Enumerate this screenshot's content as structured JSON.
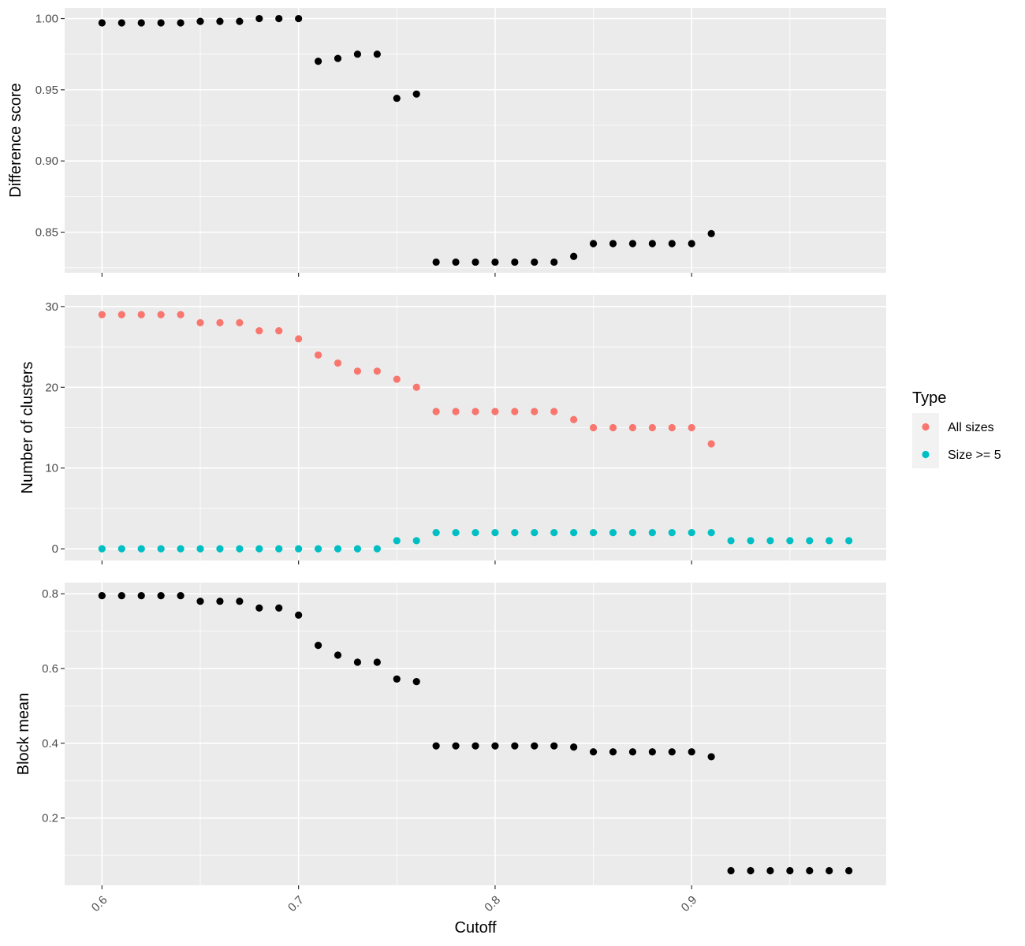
{
  "chart_data": {
    "type": "scatter",
    "xlabel": "Cutoff",
    "x_ticks": [
      "0.6",
      "0.7",
      "0.8",
      "0.9"
    ],
    "xlim": [
      0.581,
      0.999
    ],
    "legend": {
      "title": "Type",
      "position": "right",
      "entries": [
        {
          "label": "All sizes",
          "color": "#F8766D"
        },
        {
          "label": "Size >= 5",
          "color": "#00BFC4"
        }
      ]
    },
    "panels": [
      {
        "ylabel": "Difference score",
        "ylim": [
          0.8215,
          1.0075
        ],
        "y_ticks": [
          0.85,
          0.9,
          0.95,
          1.0
        ],
        "y_tick_labels": [
          "0.85",
          "0.90",
          "0.95",
          "1.00"
        ],
        "series": [
          {
            "color": "#000000",
            "x": [
              0.6,
              0.61,
              0.62,
              0.63,
              0.64,
              0.65,
              0.66,
              0.67,
              0.68,
              0.69,
              0.7,
              0.71,
              0.72,
              0.73,
              0.74,
              0.75,
              0.76,
              0.77,
              0.78,
              0.79,
              0.8,
              0.81,
              0.82,
              0.83,
              0.84,
              0.85,
              0.86,
              0.87,
              0.88,
              0.89,
              0.9,
              0.91
            ],
            "y": [
              0.997,
              0.997,
              0.997,
              0.997,
              0.997,
              0.998,
              0.998,
              0.998,
              1.0,
              1.0,
              1.0,
              0.97,
              0.972,
              0.975,
              0.975,
              0.944,
              0.947,
              0.829,
              0.829,
              0.829,
              0.829,
              0.829,
              0.829,
              0.829,
              0.833,
              0.842,
              0.842,
              0.842,
              0.842,
              0.842,
              0.842,
              0.849
            ]
          }
        ]
      },
      {
        "ylabel": "Number of clusters",
        "ylim": [
          -1.45,
          31.45
        ],
        "y_ticks": [
          0,
          10,
          20,
          30
        ],
        "y_tick_labels": [
          "0",
          "10",
          "20",
          "30"
        ],
        "series": [
          {
            "name": "All sizes",
            "color": "#F8766D",
            "x": [
              0.6,
              0.61,
              0.62,
              0.63,
              0.64,
              0.65,
              0.66,
              0.67,
              0.68,
              0.69,
              0.7,
              0.71,
              0.72,
              0.73,
              0.74,
              0.75,
              0.76,
              0.77,
              0.78,
              0.79,
              0.8,
              0.81,
              0.82,
              0.83,
              0.84,
              0.85,
              0.86,
              0.87,
              0.88,
              0.89,
              0.9,
              0.91
            ],
            "y": [
              29,
              29,
              29,
              29,
              29,
              28,
              28,
              28,
              27,
              27,
              26,
              24,
              23,
              22,
              22,
              21,
              20,
              17,
              17,
              17,
              17,
              17,
              17,
              17,
              16,
              15,
              15,
              15,
              15,
              15,
              15,
              13
            ]
          },
          {
            "name": "Size >= 5",
            "color": "#00BFC4",
            "x": [
              0.6,
              0.61,
              0.62,
              0.63,
              0.64,
              0.65,
              0.66,
              0.67,
              0.68,
              0.69,
              0.7,
              0.71,
              0.72,
              0.73,
              0.74,
              0.75,
              0.76,
              0.77,
              0.78,
              0.79,
              0.8,
              0.81,
              0.82,
              0.83,
              0.84,
              0.85,
              0.86,
              0.87,
              0.88,
              0.89,
              0.9,
              0.91,
              0.92,
              0.93,
              0.94,
              0.95,
              0.96,
              0.97,
              0.98
            ],
            "y": [
              0,
              0,
              0,
              0,
              0,
              0,
              0,
              0,
              0,
              0,
              0,
              0,
              0,
              0,
              0,
              1,
              1,
              2,
              2,
              2,
              2,
              2,
              2,
              2,
              2,
              2,
              2,
              2,
              2,
              2,
              2,
              2,
              1,
              1,
              1,
              1,
              1,
              1,
              1
            ]
          }
        ]
      },
      {
        "ylabel": "Block mean",
        "ylim": [
          0.02,
          0.83
        ],
        "y_ticks": [
          0.2,
          0.4,
          0.6,
          0.8
        ],
        "y_tick_labels": [
          "0.2",
          "0.4",
          "0.6",
          "0.8"
        ],
        "series": [
          {
            "color": "#000000",
            "x": [
              0.6,
              0.61,
              0.62,
              0.63,
              0.64,
              0.65,
              0.66,
              0.67,
              0.68,
              0.69,
              0.7,
              0.71,
              0.72,
              0.73,
              0.74,
              0.75,
              0.76,
              0.77,
              0.78,
              0.79,
              0.8,
              0.81,
              0.82,
              0.83,
              0.84,
              0.85,
              0.86,
              0.87,
              0.88,
              0.89,
              0.9,
              0.91,
              0.92,
              0.93,
              0.94,
              0.95,
              0.96,
              0.97,
              0.98
            ],
            "y": [
              0.795,
              0.795,
              0.795,
              0.795,
              0.795,
              0.78,
              0.78,
              0.78,
              0.762,
              0.762,
              0.743,
              0.662,
              0.636,
              0.617,
              0.617,
              0.572,
              0.565,
              0.393,
              0.393,
              0.393,
              0.393,
              0.393,
              0.393,
              0.393,
              0.39,
              0.377,
              0.377,
              0.377,
              0.377,
              0.377,
              0.377,
              0.364,
              0.059,
              0.059,
              0.059,
              0.059,
              0.059,
              0.059,
              0.059
            ]
          }
        ]
      }
    ]
  }
}
